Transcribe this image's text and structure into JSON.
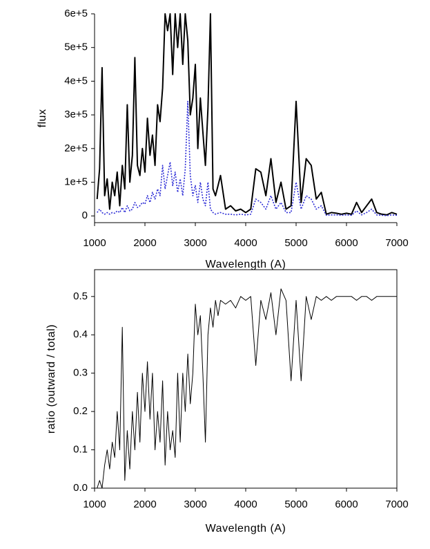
{
  "chart_data": [
    {
      "type": "line",
      "ylabel": "flux",
      "xlabel": "Wavelength (A)",
      "x": [
        1050,
        1100,
        1150,
        1200,
        1250,
        1300,
        1350,
        1400,
        1450,
        1500,
        1550,
        1600,
        1650,
        1700,
        1750,
        1800,
        1850,
        1900,
        1950,
        2000,
        2050,
        2100,
        2150,
        2200,
        2250,
        2300,
        2350,
        2400,
        2450,
        2500,
        2550,
        2600,
        2650,
        2700,
        2750,
        2800,
        2850,
        2900,
        2950,
        3000,
        3050,
        3100,
        3150,
        3200,
        3250,
        3300,
        3350,
        3400,
        3450,
        3500,
        3600,
        3700,
        3800,
        3900,
        4000,
        4100,
        4200,
        4300,
        4400,
        4500,
        4600,
        4700,
        4800,
        4900,
        5000,
        5100,
        5200,
        5300,
        5400,
        5500,
        5600,
        5700,
        5800,
        5900,
        6000,
        6100,
        6200,
        6300,
        6400,
        6500,
        6600,
        6700,
        6800,
        6900,
        7000
      ],
      "series": [
        {
          "color": "#000000",
          "dash": "solid",
          "values": [
            50000,
            140000,
            440000,
            60000,
            110000,
            20000,
            100000,
            60000,
            130000,
            30000,
            150000,
            80000,
            330000,
            100000,
            180000,
            470000,
            150000,
            120000,
            200000,
            130000,
            290000,
            180000,
            240000,
            150000,
            330000,
            280000,
            380000,
            600000,
            550000,
            600000,
            420000,
            600000,
            500000,
            600000,
            450000,
            600000,
            520000,
            300000,
            350000,
            450000,
            200000,
            350000,
            250000,
            150000,
            320000,
            600000,
            80000,
            60000,
            90000,
            120000,
            20000,
            30000,
            15000,
            20000,
            10000,
            20000,
            140000,
            130000,
            60000,
            170000,
            40000,
            100000,
            20000,
            30000,
            340000,
            40000,
            170000,
            150000,
            50000,
            70000,
            5000,
            10000,
            8000,
            5000,
            8000,
            5000,
            40000,
            10000,
            30000,
            50000,
            10000,
            5000,
            3000,
            10000,
            5000
          ]
        },
        {
          "color": "#2b2bd6",
          "dash": "dotted",
          "values": [
            10000,
            20000,
            10000,
            5000,
            10000,
            5000,
            10000,
            8000,
            15000,
            10000,
            25000,
            10000,
            30000,
            15000,
            20000,
            40000,
            25000,
            30000,
            40000,
            35000,
            60000,
            40000,
            70000,
            50000,
            80000,
            60000,
            150000,
            80000,
            120000,
            160000,
            90000,
            130000,
            70000,
            110000,
            60000,
            140000,
            340000,
            120000,
            60000,
            90000,
            40000,
            100000,
            50000,
            30000,
            100000,
            20000,
            10000,
            5000,
            8000,
            10000,
            5000,
            5000,
            3000,
            5000,
            3000,
            5000,
            50000,
            40000,
            20000,
            60000,
            20000,
            40000,
            10000,
            10000,
            100000,
            20000,
            60000,
            50000,
            20000,
            30000,
            2000,
            3000,
            3000,
            2000,
            3000,
            2000,
            15000,
            3000,
            10000,
            20000,
            3000,
            2000,
            1000,
            3000,
            2000
          ]
        }
      ],
      "xlim": [
        1000,
        7000
      ],
      "xticks": [
        1000,
        2000,
        3000,
        4000,
        5000,
        6000,
        7000
      ],
      "ylim": [
        -20000,
        600000
      ],
      "yticks": [
        0,
        {
          "value": 100000,
          "label": "1e+5"
        },
        {
          "value": 200000,
          "label": "2e+5"
        },
        {
          "value": 300000,
          "label": "3e+5"
        },
        {
          "value": 400000,
          "label": "4e+5"
        },
        {
          "value": 500000,
          "label": "5e+5"
        },
        {
          "value": 600000,
          "label": "6e+5"
        }
      ]
    },
    {
      "type": "line",
      "ylabel": "ratio (outward / total)",
      "xlabel": "Wavelength (A)",
      "x": [
        1050,
        1100,
        1150,
        1200,
        1250,
        1300,
        1350,
        1400,
        1450,
        1500,
        1550,
        1600,
        1650,
        1700,
        1750,
        1800,
        1850,
        1900,
        1950,
        2000,
        2050,
        2100,
        2150,
        2200,
        2250,
        2300,
        2350,
        2400,
        2450,
        2500,
        2550,
        2600,
        2650,
        2700,
        2750,
        2800,
        2850,
        2900,
        2950,
        3000,
        3050,
        3100,
        3150,
        3200,
        3250,
        3300,
        3350,
        3400,
        3450,
        3500,
        3600,
        3700,
        3800,
        3900,
        4000,
        4100,
        4200,
        4300,
        4400,
        4500,
        4600,
        4700,
        4800,
        4900,
        5000,
        5100,
        5200,
        5300,
        5400,
        5500,
        5600,
        5700,
        5800,
        5900,
        6000,
        6100,
        6200,
        6300,
        6400,
        6500,
        6600,
        6700,
        6800,
        6900,
        7000
      ],
      "series": [
        {
          "color": "#000000",
          "dash": "solid",
          "values": [
            0.0,
            0.02,
            0.0,
            0.06,
            0.1,
            0.05,
            0.12,
            0.08,
            0.2,
            0.1,
            0.42,
            0.02,
            0.15,
            0.05,
            0.2,
            0.1,
            0.25,
            0.12,
            0.3,
            0.2,
            0.33,
            0.18,
            0.3,
            0.1,
            0.2,
            0.12,
            0.28,
            0.06,
            0.2,
            0.1,
            0.15,
            0.08,
            0.3,
            0.12,
            0.3,
            0.2,
            0.35,
            0.22,
            0.3,
            0.48,
            0.4,
            0.45,
            0.3,
            0.12,
            0.4,
            0.47,
            0.42,
            0.49,
            0.45,
            0.49,
            0.48,
            0.49,
            0.47,
            0.5,
            0.49,
            0.5,
            0.32,
            0.49,
            0.44,
            0.51,
            0.4,
            0.52,
            0.49,
            0.28,
            0.49,
            0.28,
            0.5,
            0.44,
            0.5,
            0.49,
            0.5,
            0.49,
            0.5,
            0.5,
            0.5,
            0.5,
            0.49,
            0.5,
            0.5,
            0.49,
            0.5,
            0.5,
            0.5,
            0.5,
            0.5
          ]
        }
      ],
      "xlim": [
        1000,
        7000
      ],
      "xticks": [
        1000,
        2000,
        3000,
        4000,
        5000,
        6000,
        7000
      ],
      "ylim": [
        0,
        0.57
      ],
      "yticks": [
        {
          "value": 0,
          "label": "0.0"
        },
        0.1,
        0.2,
        0.3,
        0.4,
        0.5
      ]
    }
  ]
}
